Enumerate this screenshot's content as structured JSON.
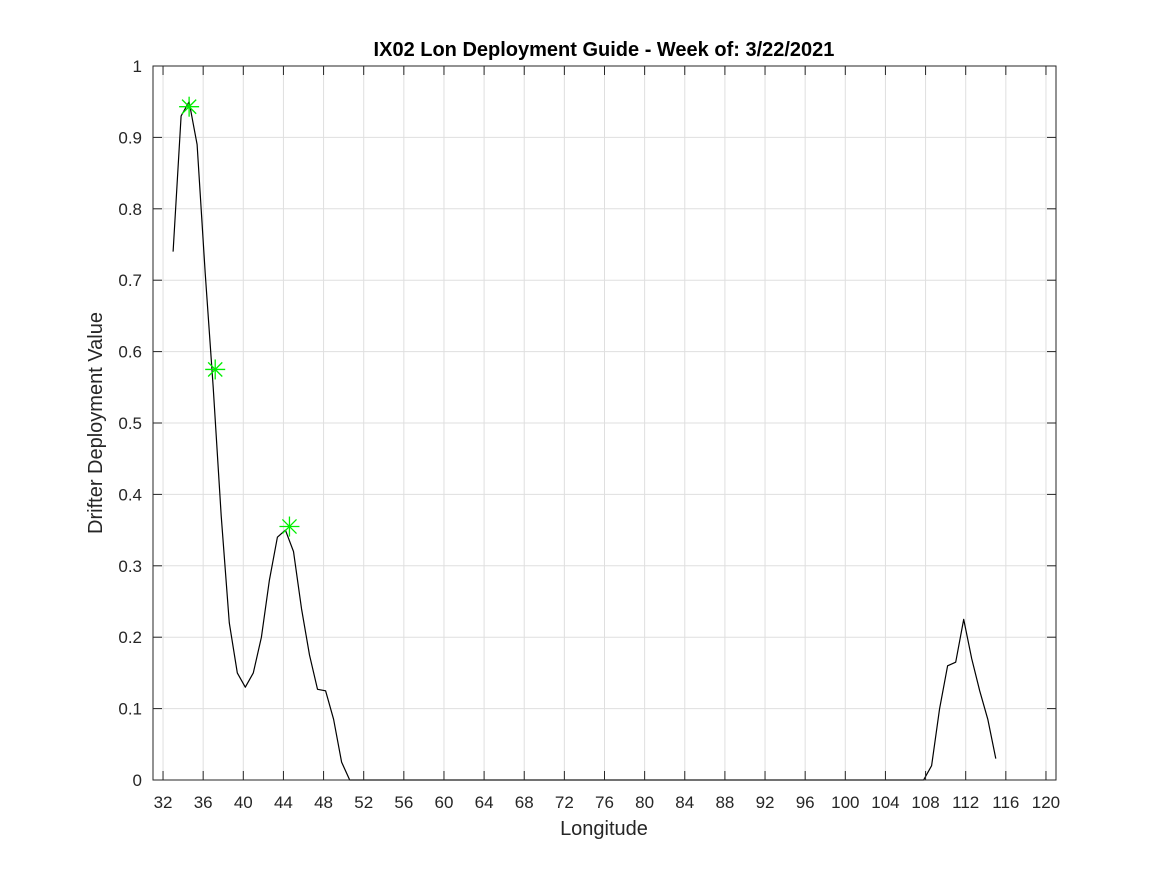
{
  "chart_data": {
    "type": "line",
    "title": "IX02 Lon Deployment Guide - Week of: 3/22/2021",
    "xlabel": "Longitude",
    "ylabel": "Drifter Deployment Value",
    "xlim": [
      31,
      121
    ],
    "ylim": [
      0,
      1
    ],
    "grid": true,
    "xticks": [
      32,
      36,
      40,
      44,
      48,
      52,
      56,
      60,
      64,
      68,
      72,
      76,
      80,
      84,
      88,
      92,
      96,
      100,
      104,
      108,
      112,
      116,
      120
    ],
    "xtick_labels": [
      "32",
      "36",
      "40",
      "44",
      "48",
      "52",
      "56",
      "60",
      "64",
      "68",
      "72",
      "76",
      "80",
      "84",
      "88",
      "92",
      "96",
      "100",
      "104",
      "108",
      "112",
      "116",
      "120"
    ],
    "yticks": [
      0,
      0.1,
      0.2,
      0.3,
      0.4,
      0.5,
      0.6,
      0.7,
      0.8,
      0.9,
      1
    ],
    "ytick_labels": [
      "0",
      "0.1",
      "0.2",
      "0.3",
      "0.4",
      "0.5",
      "0.6",
      "0.7",
      "0.8",
      "0.9",
      "1"
    ],
    "series": [
      {
        "kind": "line",
        "color": "#000000",
        "x": [
          33.0,
          33.8,
          34.6,
          35.4,
          36.2,
          37.0,
          37.8,
          38.6,
          39.4,
          40.2,
          41.0,
          41.8,
          42.6,
          43.4,
          44.2,
          45.0,
          45.8,
          46.6,
          47.4,
          48.2,
          49.0,
          49.8,
          50.6,
          51.4,
          52.2,
          107.0,
          107.8,
          108.6,
          109.4,
          110.2,
          111.0,
          111.8,
          112.6,
          113.4,
          114.2,
          115.0
        ],
        "y": [
          0.74,
          0.93,
          0.95,
          0.89,
          0.71,
          0.55,
          0.37,
          0.22,
          0.15,
          0.13,
          0.15,
          0.2,
          0.28,
          0.34,
          0.35,
          0.32,
          0.24,
          0.175,
          0.127,
          0.125,
          0.085,
          0.025,
          0.0,
          0.0,
          0.0,
          0.0,
          0.0,
          0.02,
          0.1,
          0.16,
          0.165,
          0.225,
          0.17,
          0.125,
          0.085,
          0.03
        ]
      },
      {
        "kind": "markers",
        "marker": "asterisk",
        "color": "#00ee00",
        "x": [
          34.6,
          37.2,
          44.6
        ],
        "y": [
          0.943,
          0.575,
          0.355
        ]
      }
    ]
  }
}
